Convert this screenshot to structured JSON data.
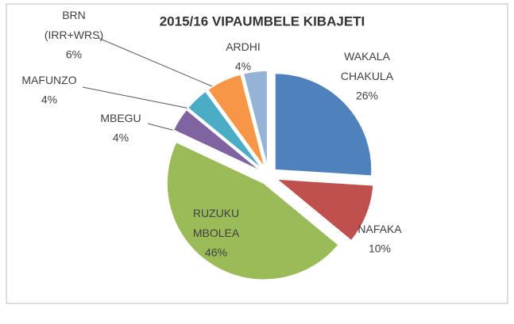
{
  "chart_data": {
    "type": "pie",
    "title": "2015/16 VIPAUMBELE KIBAJETI",
    "categories": [
      "WAKALA CHAKULA",
      "NAFAKA",
      "RUZUKU MBOLEA",
      "MBEGU",
      "MAFUNZO",
      "BRN (IRR+WRS)",
      "ARDHI"
    ],
    "values": [
      26,
      10,
      46,
      4,
      4,
      6,
      4
    ],
    "value_labels": [
      "26%",
      "10%",
      "46%",
      "4%",
      "4%",
      "6%",
      "4%"
    ],
    "colors": [
      "#4f81bd",
      "#c0504d",
      "#9bbb59",
      "#8064a2",
      "#4bacc6",
      "#f79646",
      "#95b3d7"
    ]
  }
}
